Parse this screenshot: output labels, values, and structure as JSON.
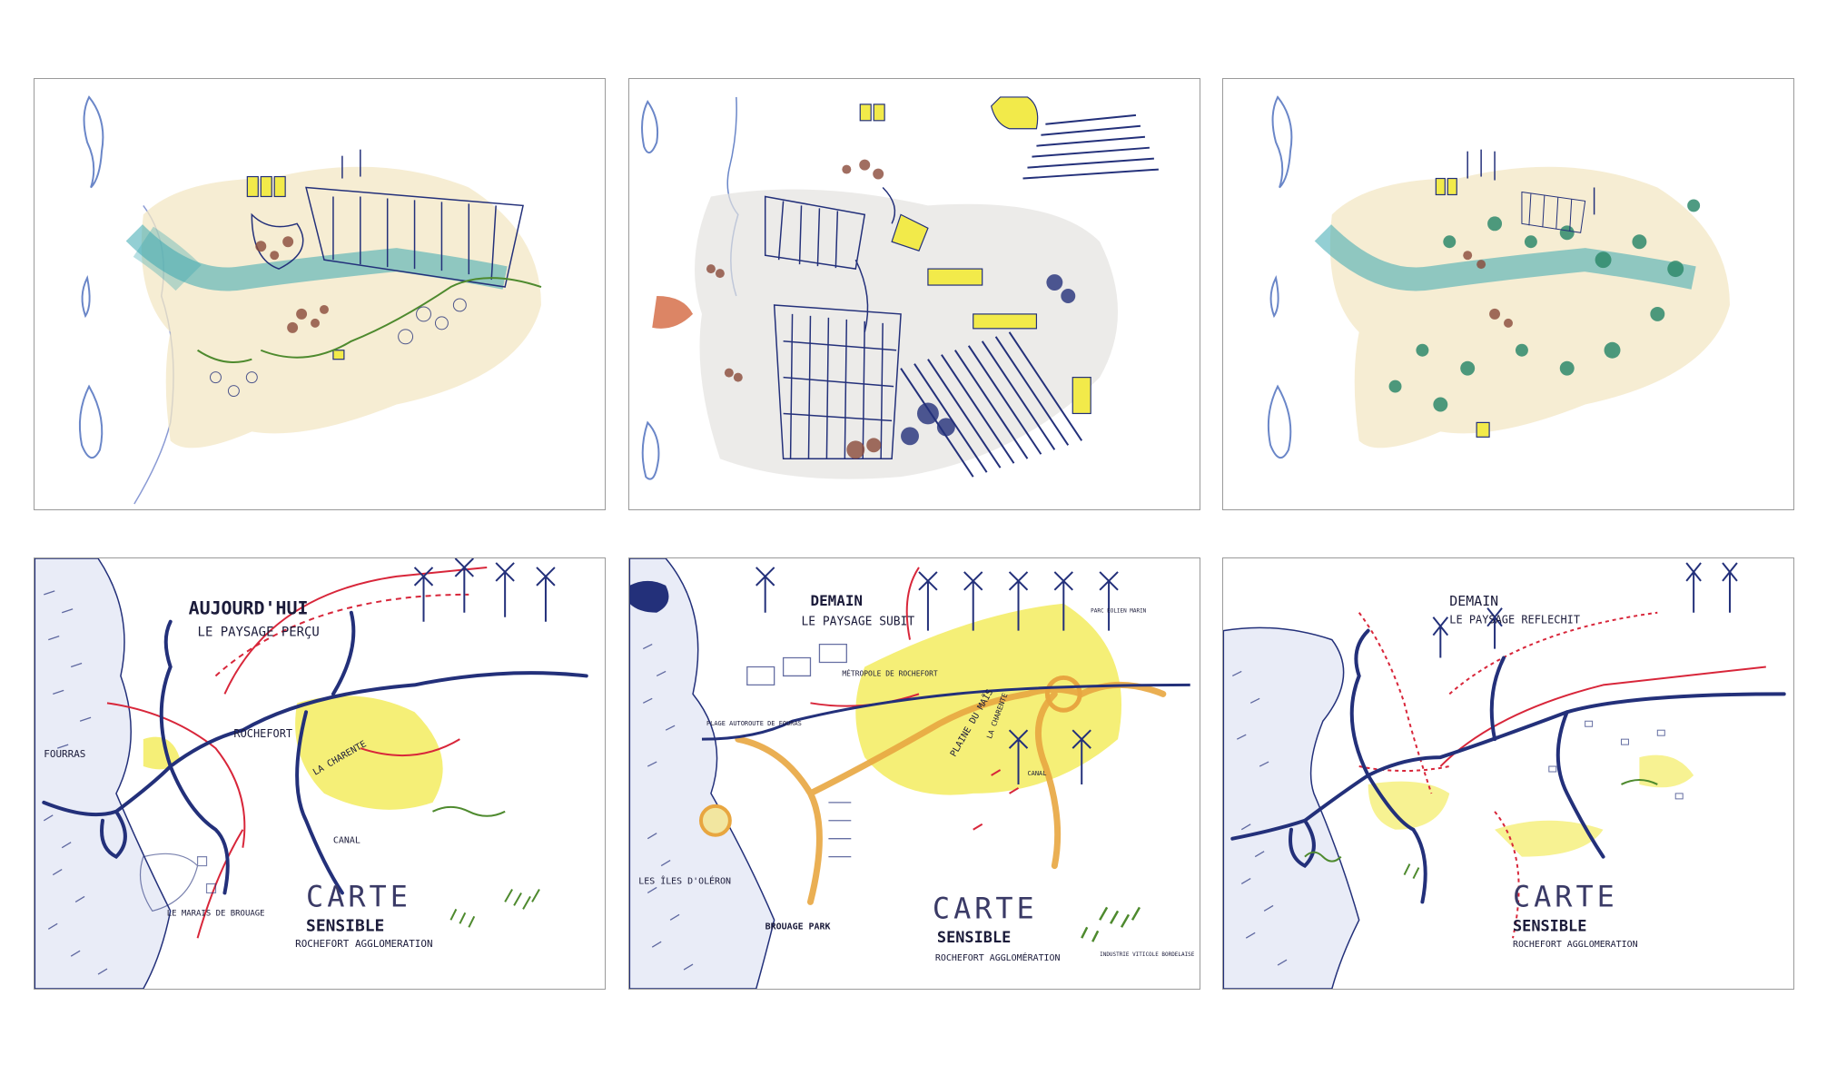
{
  "panels": [
    {
      "id": "top-left",
      "type": "drawing"
    },
    {
      "id": "top-middle",
      "type": "drawing"
    },
    {
      "id": "top-right",
      "type": "drawing"
    },
    {
      "id": "bottom-left",
      "title": "AUJOURD'HUI",
      "subtitle": "LE PAYSAGE PERÇU",
      "labels": [
        "ROCHEFORT",
        "FOURRAS",
        "LA CHARENTE",
        "CANAL",
        "LE MARAIS DE BROUAGE"
      ],
      "caption": [
        "CARTE",
        "SENSIBLE",
        "ROCHEFORT AGGLOMERATION"
      ]
    },
    {
      "id": "bottom-middle",
      "title": "DEMAIN",
      "subtitle": "LE PAYSAGE SUBIT",
      "labels": [
        "MÉTROPOLE DE ROCHEFORT",
        "PLAGE AUTOROUTE DE FOURAS",
        "PLAINE DU MAÏS",
        "LA CHARENTE",
        "CANAL",
        "PARC ÉOLIEN MARIN",
        "LES ÎLES D'OLÉRON",
        "BROUAGE PARK",
        "INDUSTRIE VITICOLE BORDELAISE"
      ],
      "caption": [
        "CARTE",
        "SENSIBLE",
        "ROCHEFORT AGGLOMÉRATION"
      ]
    },
    {
      "id": "bottom-right",
      "title": "DEMAIN",
      "subtitle": "LE PAYSAGE REFLECHIT",
      "labels": [],
      "caption": [
        "CARTE",
        "SENSIBLE",
        "ROCHEFORT AGGLOMERATION"
      ]
    }
  ],
  "colors": {
    "ink_blue": "#23307a",
    "road_red": "#d8263a",
    "field_yellow": "#f2ea4a",
    "sea_teal": "#3aa7b0",
    "marsh_green": "#4e8a2e",
    "orange_highway": "#e8a640"
  }
}
